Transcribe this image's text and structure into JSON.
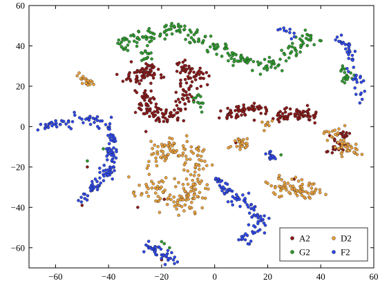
{
  "chart_data": {
    "type": "scatter",
    "xlim": [
      -70,
      60
    ],
    "ylim": [
      -70,
      60
    ],
    "xticks": [
      -60,
      -40,
      -20,
      0,
      20,
      40,
      60
    ],
    "yticks": [
      -60,
      -40,
      -20,
      0,
      20,
      40,
      60
    ],
    "legend_position": "bottom-right",
    "legend_layout": [
      [
        "A2",
        "D2"
      ],
      [
        "G2",
        "F2"
      ]
    ],
    "series": [
      {
        "name": "A2",
        "color": "#8b1a1a",
        "clusters": [
          {
            "path": [
              [
                -31,
                24
              ],
              [
                -27,
                26
              ],
              [
                -24,
                28
              ],
              [
                -21,
                27
              ]
            ],
            "spread": 2.2,
            "n": 70
          },
          {
            "path": [
              [
                -28,
                19
              ],
              [
                -26,
                14
              ],
              [
                -25,
                9
              ],
              [
                -23,
                6
              ],
              [
                -18,
                5
              ],
              [
                -14,
                7
              ]
            ],
            "spread": 2.0,
            "n": 95
          },
          {
            "path": [
              [
                -14,
                11
              ],
              [
                -11,
                14
              ],
              [
                -9,
                18
              ],
              [
                -10,
                23
              ]
            ],
            "spread": 1.8,
            "n": 40
          },
          {
            "path": [
              [
                -14,
                30
              ],
              [
                -10,
                29
              ],
              [
                -6,
                27
              ],
              [
                -4,
                24
              ]
            ],
            "spread": 1.5,
            "n": 40
          },
          {
            "path": [
              [
                3,
                5
              ],
              [
                8,
                7
              ],
              [
                13,
                9
              ],
              [
                18,
                8
              ]
            ],
            "spread": 1.4,
            "n": 60
          },
          {
            "path": [
              [
                23,
                4
              ],
              [
                28,
                6
              ],
              [
                33,
                6
              ],
              [
                38,
                5
              ]
            ],
            "spread": 1.6,
            "n": 65
          },
          {
            "path": [
              [
                43,
                -13
              ],
              [
                46,
                -10
              ],
              [
                48,
                -6
              ],
              [
                50,
                -3
              ]
            ],
            "spread": 1.6,
            "n": 35
          }
        ],
        "points": [
          [
            -48,
            -20
          ],
          [
            -50,
            -39
          ],
          [
            -29,
            -40
          ],
          [
            -19,
            -36
          ],
          [
            -20,
            -66
          ],
          [
            30,
            -26
          ],
          [
            8,
            -8
          ]
        ]
      },
      {
        "name": "D2",
        "color": "#e8a03c",
        "clusters": [
          {
            "path": [
              [
                -52,
                26
              ],
              [
                -49,
                23
              ],
              [
                -46,
                20
              ]
            ],
            "spread": 0.8,
            "n": 20
          },
          {
            "path": [
              [
                -22,
                -16
              ],
              [
                -18,
                -12
              ],
              [
                -14,
                -8
              ]
            ],
            "spread": 3.0,
            "n": 55
          },
          {
            "path": [
              [
                -24,
                -28
              ],
              [
                -20,
                -32
              ],
              [
                -16,
                -36
              ],
              [
                -13,
                -40
              ]
            ],
            "spread": 3.2,
            "n": 60
          },
          {
            "path": [
              [
                -7,
                -10
              ],
              [
                -9,
                -22
              ],
              [
                -10,
                -33
              ],
              [
                -8,
                -42
              ]
            ],
            "spread": 3.0,
            "n": 90
          },
          {
            "path": [
              [
                8,
                -8
              ],
              [
                12,
                -10
              ]
            ],
            "spread": 1.4,
            "n": 25
          },
          {
            "path": [
              [
                22,
                -28
              ],
              [
                27,
                -30
              ],
              [
                33,
                -31
              ],
              [
                39,
                -32
              ]
            ],
            "spread": 2.2,
            "n": 75
          },
          {
            "path": [
              [
                44,
                0
              ],
              [
                47,
                -5
              ],
              [
                50,
                -11
              ],
              [
                54,
                -14
              ]
            ],
            "spread": 2.0,
            "n": 45
          },
          {
            "path": [
              [
                19,
                0
              ],
              [
                20,
                2
              ]
            ],
            "spread": 1.2,
            "n": 8
          }
        ],
        "points": []
      },
      {
        "name": "G2",
        "color": "#2e9a2e",
        "clusters": [
          {
            "path": [
              [
                -37,
                39
              ],
              [
                -30,
                44
              ],
              [
                -22,
                46
              ],
              [
                -15,
                49
              ],
              [
                -8,
                46
              ],
              [
                -4,
                42
              ],
              [
                4,
                38
              ],
              [
                10,
                33
              ],
              [
                16,
                30
              ],
              [
                22,
                31
              ],
              [
                28,
                36
              ],
              [
                33,
                42
              ],
              [
                38,
                45
              ]
            ],
            "spread": 2.0,
            "n": 210
          },
          {
            "path": [
              [
                -28,
                37
              ],
              [
                -24,
                33
              ]
            ],
            "spread": 1.4,
            "n": 14
          },
          {
            "path": [
              [
                -7,
                15
              ],
              [
                -5,
                9
              ]
            ],
            "spread": 0.9,
            "n": 12
          },
          {
            "path": [
              [
                48,
                30
              ],
              [
                50,
                26
              ],
              [
                50,
                22
              ]
            ],
            "spread": 1.2,
            "n": 18
          }
        ],
        "points": [
          [
            -42,
            -11
          ],
          [
            -48,
            -17
          ],
          [
            -20,
            -57
          ],
          [
            -17,
            -60
          ],
          [
            25,
            -14
          ],
          [
            -19,
            -58
          ]
        ]
      },
      {
        "name": "F2",
        "color": "#2e48e8",
        "clusters": [
          {
            "path": [
              [
                -66,
                -3
              ],
              [
                -62,
                1
              ],
              [
                -56,
                3
              ],
              [
                -49,
                5
              ],
              [
                -44,
                3
              ],
              [
                -40,
                -1
              ],
              [
                -39,
                -8
              ],
              [
                -39,
                -16
              ],
              [
                -41,
                -24
              ],
              [
                -45,
                -30
              ],
              [
                -51,
                -37
              ]
            ],
            "spread": 1.3,
            "n": 150
          },
          {
            "path": [
              [
                0,
                -26
              ],
              [
                4,
                -30
              ],
              [
                8,
                -35
              ],
              [
                14,
                -39
              ],
              [
                17,
                -46
              ],
              [
                15,
                -53
              ],
              [
                10,
                -57
              ]
            ],
            "spread": 1.5,
            "n": 95
          },
          {
            "path": [
              [
                -27,
                -57
              ],
              [
                -23,
                -61
              ],
              [
                -19,
                -64
              ],
              [
                -15,
                -67
              ]
            ],
            "spread": 1.2,
            "n": 40
          },
          {
            "path": [
              [
                46,
                45
              ],
              [
                51,
                38
              ],
              [
                52,
                30
              ],
              [
                54,
                22
              ],
              [
                55,
                16
              ],
              [
                52,
                13
              ]
            ],
            "spread": 1.2,
            "n": 45
          },
          {
            "path": [
              [
                24,
                48
              ],
              [
                30,
                46
              ]
            ],
            "spread": 1.0,
            "n": 10
          },
          {
            "path": [
              [
                21,
                -14
              ],
              [
                23,
                -16
              ]
            ],
            "spread": 0.8,
            "n": 14
          }
        ],
        "points": [
          [
            -45,
            -26
          ]
        ]
      }
    ]
  }
}
